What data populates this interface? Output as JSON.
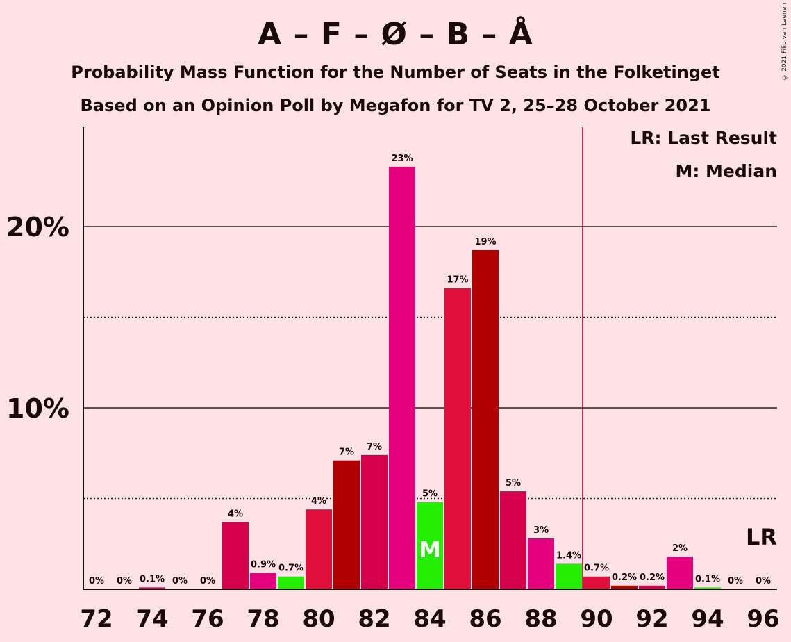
{
  "title": "A – F – Ø – B – Å",
  "subtitle1": "Probability Mass Function for the Number of Seats in the Folketinget",
  "subtitle2": "Based on an Opinion Poll by Megafon for TV 2, 25–28 October 2021",
  "copyright": "© 2021 Filip van Laenen",
  "legend": {
    "lr": "LR: Last Result",
    "m": "M: Median"
  },
  "lr_marker": "LR",
  "median_marker": "M",
  "chart_data": {
    "type": "bar",
    "title": "A – F – Ø – B – Å",
    "xlabel": "",
    "ylabel": "",
    "x": [
      72,
      73,
      74,
      75,
      76,
      77,
      78,
      79,
      80,
      81,
      82,
      83,
      84,
      85,
      86,
      87,
      88,
      89,
      90,
      91,
      92,
      93,
      94,
      95,
      96
    ],
    "values": [
      0,
      0,
      0.1,
      0,
      0,
      3.7,
      0.9,
      0.7,
      4.4,
      7.1,
      7.4,
      23.3,
      4.8,
      16.6,
      18.7,
      5.4,
      2.8,
      1.4,
      0.7,
      0.2,
      0.2,
      1.8,
      0.1,
      0,
      0
    ],
    "labels": [
      "0%",
      "0%",
      "0.1%",
      "0%",
      "0%",
      "4%",
      "0.9%",
      "0.7%",
      "4%",
      "7%",
      "7%",
      "23%",
      "5%",
      "17%",
      "19%",
      "5%",
      "3%",
      "1.4%",
      "0.7%",
      "0.2%",
      "0.2%",
      "2%",
      "0.1%",
      "0%",
      "0%"
    ],
    "colors": [
      "#e5007d",
      "#b00000",
      "#d4004a",
      "#e5007d",
      "#d4004a",
      "#d4004a",
      "#e5007d",
      "#22ee00",
      "#e0103c",
      "#b00000",
      "#d4004a",
      "#e5007d",
      "#22ee00",
      "#e0103c",
      "#b00000",
      "#d4004a",
      "#e5007d",
      "#22ee00",
      "#e0103c",
      "#b00000",
      "#d4004a",
      "#e5007d",
      "#22ee00",
      "#e0103c",
      "#b00000"
    ],
    "x_ticks": [
      "72",
      "74",
      "76",
      "78",
      "80",
      "82",
      "84",
      "86",
      "88",
      "90",
      "92",
      "94",
      "96"
    ],
    "y_ticks": [
      "10%",
      "20%"
    ],
    "ylim": [
      0,
      25
    ],
    "median_seat": 84,
    "majority_line": 89.5,
    "last_result_seat": 96,
    "grid": true,
    "legend_position": "top-right"
  }
}
